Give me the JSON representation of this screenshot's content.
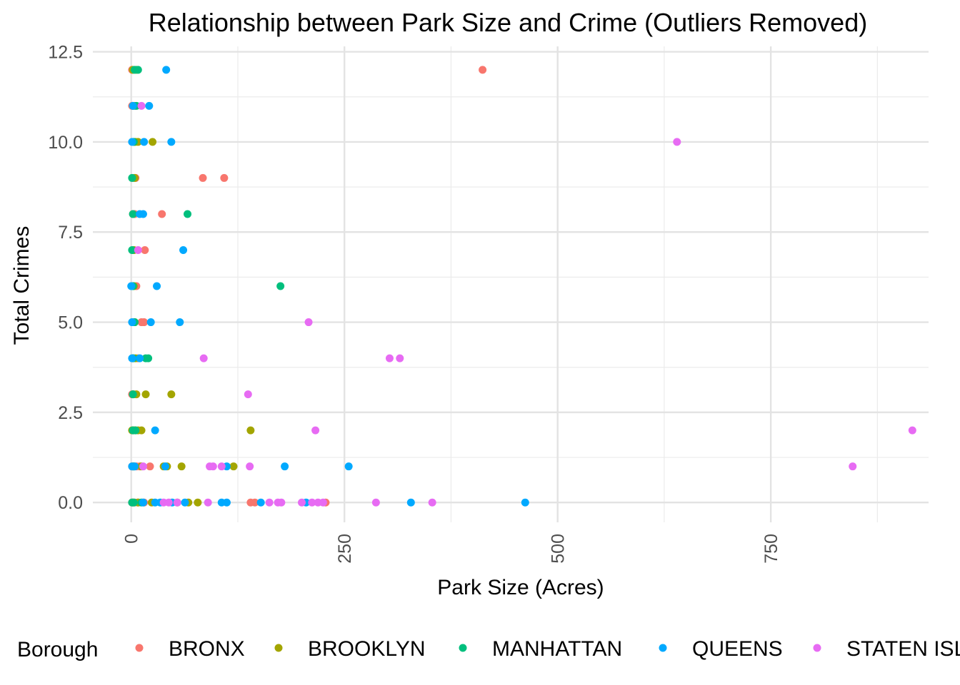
{
  "chart_data": {
    "type": "scatter",
    "title": "Relationship between Park Size and Crime (Outliers Removed)",
    "xlabel": "Park Size (Acres)",
    "ylabel": "Total Crimes",
    "xlim": [
      -45,
      935
    ],
    "ylim": [
      -0.55,
      12.65
    ],
    "x_ticks": [
      0,
      250,
      500,
      750
    ],
    "x_tick_labels": [
      "0",
      "250",
      "500",
      "750"
    ],
    "y_ticks": [
      0,
      2.5,
      5,
      7.5,
      10,
      12.5
    ],
    "y_tick_labels": [
      "0.0",
      "2.5",
      "5.0",
      "7.5",
      "10.0",
      "12.5"
    ],
    "x_minor_ticks": [
      125,
      375,
      625,
      875
    ],
    "y_minor_ticks": [
      1.25,
      3.75,
      6.25,
      8.75,
      11.25
    ],
    "grid": true,
    "legend": {
      "title": "Borough",
      "position": "bottom"
    },
    "series": [
      {
        "name": "BRONX",
        "color": "#F8766D",
        "points": [
          [
            412,
            12
          ],
          [
            1,
            12
          ],
          [
            2,
            11
          ],
          [
            1,
            11
          ],
          [
            3,
            10
          ],
          [
            84,
            9
          ],
          [
            109,
            9
          ],
          [
            2,
            9
          ],
          [
            5,
            9
          ],
          [
            36,
            8
          ],
          [
            2,
            8
          ],
          [
            4,
            8
          ],
          [
            16,
            7
          ],
          [
            3,
            7
          ],
          [
            6,
            6
          ],
          [
            2,
            6
          ],
          [
            15,
            5
          ],
          [
            12,
            5
          ],
          [
            3,
            5
          ],
          [
            8,
            4
          ],
          [
            2,
            4
          ],
          [
            1,
            3
          ],
          [
            3,
            3
          ],
          [
            2,
            2
          ],
          [
            1,
            1
          ],
          [
            3,
            1
          ],
          [
            6,
            1
          ],
          [
            10,
            1
          ],
          [
            22,
            1
          ],
          [
            1,
            0
          ],
          [
            4,
            0
          ],
          [
            8,
            0
          ],
          [
            15,
            0
          ],
          [
            140,
            0
          ],
          [
            145,
            0
          ],
          [
            228,
            0
          ]
        ]
      },
      {
        "name": "BROOKLYN",
        "color": "#A3A500",
        "points": [
          [
            2,
            12
          ],
          [
            6,
            12
          ],
          [
            4,
            11
          ],
          [
            5,
            10
          ],
          [
            25,
            10
          ],
          [
            8,
            10
          ],
          [
            4,
            9
          ],
          [
            3,
            7
          ],
          [
            3,
            6
          ],
          [
            4,
            5
          ],
          [
            2,
            4
          ],
          [
            5,
            4
          ],
          [
            17,
            3
          ],
          [
            47,
            3
          ],
          [
            2,
            3
          ],
          [
            6,
            3
          ],
          [
            1,
            2
          ],
          [
            3,
            2
          ],
          [
            5,
            2
          ],
          [
            8,
            2
          ],
          [
            12,
            2
          ],
          [
            140,
            2
          ],
          [
            38,
            1
          ],
          [
            42,
            1
          ],
          [
            59,
            1
          ],
          [
            120,
            1
          ],
          [
            2,
            1
          ],
          [
            12,
            1
          ],
          [
            2,
            0
          ],
          [
            8,
            0
          ],
          [
            24,
            0
          ],
          [
            54,
            0
          ],
          [
            67,
            0
          ],
          [
            78,
            0
          ]
        ]
      },
      {
        "name": "MANHATTAN",
        "color": "#00BF7D",
        "points": [
          [
            4,
            12
          ],
          [
            8,
            12
          ],
          [
            6,
            11
          ],
          [
            3,
            10
          ],
          [
            1,
            9
          ],
          [
            66,
            8
          ],
          [
            2,
            8
          ],
          [
            1,
            7
          ],
          [
            175,
            6
          ],
          [
            2,
            6
          ],
          [
            4,
            5
          ],
          [
            2,
            4
          ],
          [
            20,
            4
          ],
          [
            17,
            4
          ],
          [
            2,
            3
          ],
          [
            2,
            2
          ],
          [
            5,
            2
          ],
          [
            3,
            1
          ],
          [
            1,
            0
          ],
          [
            3,
            0
          ],
          [
            12,
            0
          ]
        ]
      },
      {
        "name": "QUEENS",
        "color": "#00A9FF",
        "points": [
          [
            41,
            12
          ],
          [
            21,
            11
          ],
          [
            2,
            11
          ],
          [
            47,
            10
          ],
          [
            15,
            10
          ],
          [
            1,
            10
          ],
          [
            14,
            8
          ],
          [
            10,
            8
          ],
          [
            61,
            7
          ],
          [
            30,
            6
          ],
          [
            0,
            6
          ],
          [
            57,
            5
          ],
          [
            23,
            5
          ],
          [
            1,
            5
          ],
          [
            10,
            4
          ],
          [
            1,
            4
          ],
          [
            28,
            2
          ],
          [
            180,
            1
          ],
          [
            255,
            1
          ],
          [
            40,
            1
          ],
          [
            112,
            1
          ],
          [
            1,
            1
          ],
          [
            4,
            1
          ],
          [
            14,
            0
          ],
          [
            28,
            0
          ],
          [
            34,
            0
          ],
          [
            48,
            0
          ],
          [
            63,
            0
          ],
          [
            106,
            0
          ],
          [
            112,
            0
          ],
          [
            152,
            0
          ],
          [
            205,
            0
          ],
          [
            328,
            0
          ],
          [
            462,
            0
          ]
        ]
      },
      {
        "name": "STATEN ISLAND",
        "color": "#E76BF3",
        "points": [
          [
            640,
            10
          ],
          [
            12,
            11
          ],
          [
            8,
            7
          ],
          [
            208,
            5
          ],
          [
            85,
            4
          ],
          [
            303,
            4
          ],
          [
            315,
            4
          ],
          [
            137,
            3
          ],
          [
            216,
            2
          ],
          [
            916,
            2
          ],
          [
            846,
            1
          ],
          [
            92,
            1
          ],
          [
            96,
            1
          ],
          [
            106,
            1
          ],
          [
            139,
            1
          ],
          [
            14,
            1
          ],
          [
            38,
            0
          ],
          [
            44,
            0
          ],
          [
            54,
            0
          ],
          [
            90,
            0
          ],
          [
            162,
            0
          ],
          [
            172,
            0
          ],
          [
            176,
            0
          ],
          [
            200,
            0
          ],
          [
            212,
            0
          ],
          [
            219,
            0
          ],
          [
            225,
            0
          ],
          [
            287,
            0
          ],
          [
            353,
            0
          ]
        ]
      }
    ]
  }
}
